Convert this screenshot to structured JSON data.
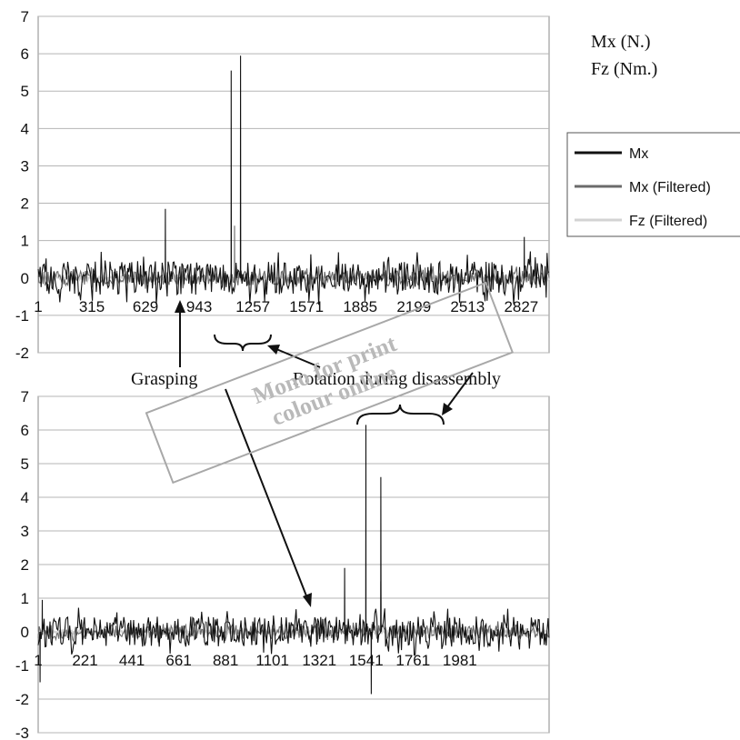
{
  "units_label": [
    "Mx (N.)",
    "Fz (Nm.)"
  ],
  "legend": [
    {
      "name": "Mx",
      "color": "#111111"
    },
    {
      "name": "Mx (Filtered)",
      "color": "#6b6b6b"
    },
    {
      "name": "Fz (Filtered)",
      "color": "#d3d3d3"
    }
  ],
  "annotations": {
    "grasping": "Grasping",
    "rotation": "Rotation during disassembly"
  },
  "watermark": [
    "Mono for print",
    "colour online"
  ],
  "chart_data": [
    {
      "type": "line",
      "title": "",
      "xlabel": "",
      "ylabel": "",
      "ylim": [
        -2,
        7
      ],
      "yticks": [
        -2,
        -1,
        0,
        1,
        2,
        3,
        4,
        5,
        6,
        7
      ],
      "xlim": [
        1,
        2990
      ],
      "x_tick_labels": [
        "1",
        "315",
        "629",
        "943",
        "1257",
        "1571",
        "1885",
        "2199",
        "2513",
        "2827"
      ],
      "grid": true,
      "legend_position": "right",
      "series": [
        {
          "name": "Mx",
          "noise_amplitude": 0.45,
          "spikes": [
            {
              "x": 745,
              "value": 1.85
            },
            {
              "x": 1130,
              "value": 5.55
            },
            {
              "x": 1185,
              "value": 5.95
            },
            {
              "x": 2845,
              "value": 1.1
            }
          ]
        },
        {
          "name": "Mx (Filtered)",
          "noise_amplitude": 0.2,
          "spikes": [
            {
              "x": 1150,
              "value": 1.4
            }
          ]
        },
        {
          "name": "Fz (Filtered)",
          "noise_amplitude": 0.05,
          "spikes": []
        }
      ]
    },
    {
      "type": "line",
      "title": "",
      "xlabel": "",
      "ylabel": "",
      "ylim": [
        -3,
        7
      ],
      "yticks": [
        -3,
        -2,
        -1,
        0,
        1,
        2,
        3,
        4,
        5,
        6,
        7
      ],
      "xlim": [
        1,
        2400
      ],
      "x_tick_labels": [
        "1",
        "221",
        "441",
        "661",
        "881",
        "1101",
        "1321",
        "1541",
        "1761",
        "1981"
      ],
      "grid": true,
      "legend_position": "none",
      "series": [
        {
          "name": "Mx",
          "noise_amplitude": 0.45,
          "spikes": [
            {
              "x": 10,
              "value": -1.5
            },
            {
              "x": 20,
              "value": 0.95
            },
            {
              "x": 1440,
              "value": 1.9
            },
            {
              "x": 1540,
              "value": 6.15
            },
            {
              "x": 1565,
              "value": -1.85
            },
            {
              "x": 1610,
              "value": 4.6
            }
          ]
        },
        {
          "name": "Mx (Filtered)",
          "noise_amplitude": 0.2,
          "spikes": [
            {
              "x": 1610,
              "value": 1.5
            }
          ]
        },
        {
          "name": "Fz (Filtered)",
          "noise_amplitude": 0.05,
          "spikes": []
        }
      ]
    }
  ]
}
